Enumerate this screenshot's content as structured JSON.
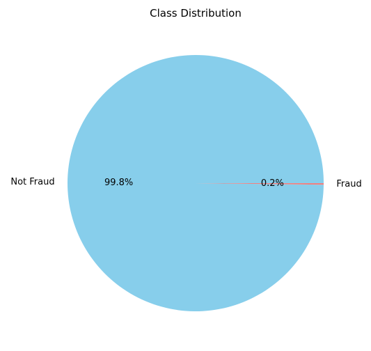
{
  "chart_data": {
    "type": "pie",
    "title": "Class Distribution",
    "categories": [
      "Not Fraud",
      "Fraud"
    ],
    "values": [
      99.8,
      0.2
    ],
    "percent_labels": [
      "99.8%",
      "0.2%"
    ],
    "colors": [
      "#87ceeb",
      "#f08080"
    ],
    "legend": "none"
  }
}
